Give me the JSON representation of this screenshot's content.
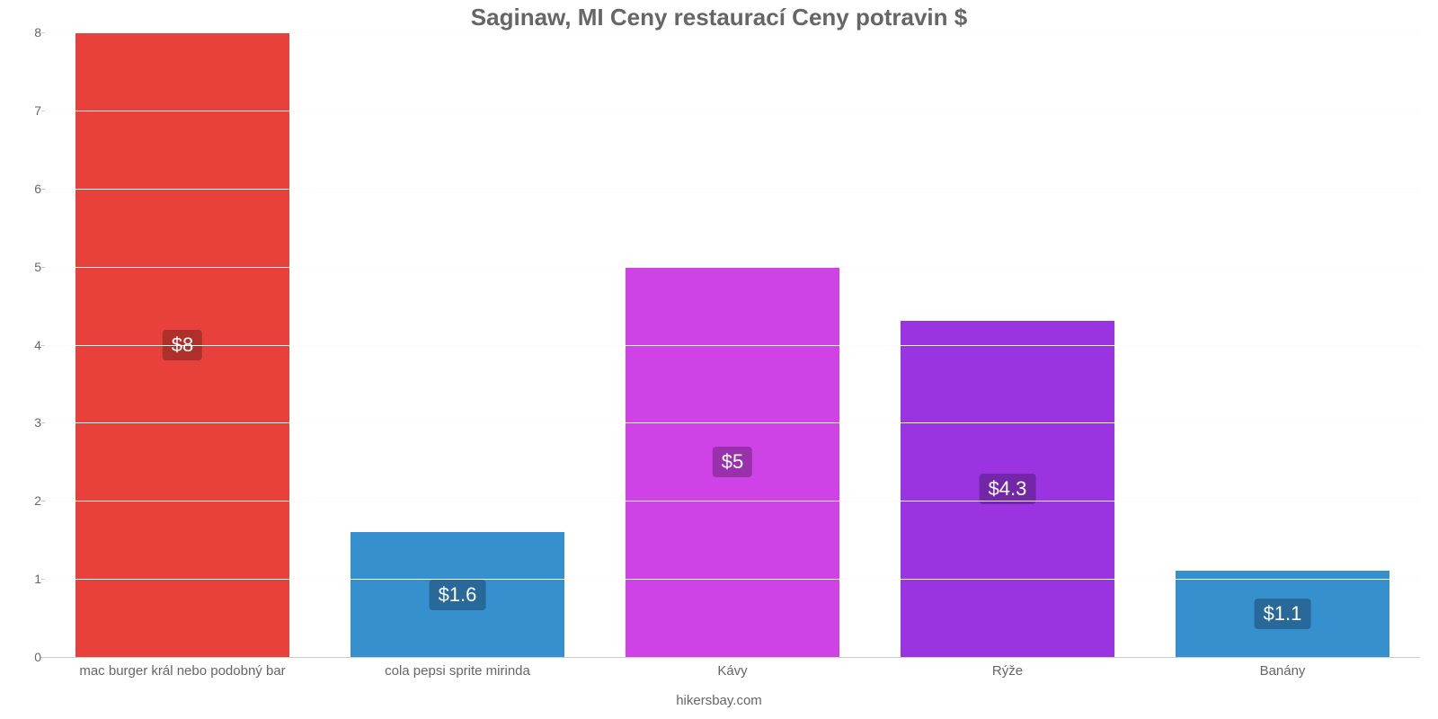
{
  "chart": {
    "type": "bar",
    "title": "Saginaw, MI Ceny restaurací Ceny potravin $",
    "title_fontsize": 26,
    "title_color": "#666666",
    "credit": "hikersbay.com",
    "credit_color": "#666666",
    "background_color": "#ffffff",
    "grid_color": "#fafafa",
    "axis_color": "#cccccc",
    "tick_label_color": "#666666",
    "tick_fontsize": 14,
    "x_label_fontsize": 15,
    "value_label_fontsize": 22,
    "ylim": [
      0,
      8
    ],
    "ytick_step": 1,
    "bar_width_pct": 15.5,
    "categories": [
      "mac burger král nebo podobný bar",
      "cola pepsi sprite mirinda",
      "Kávy",
      "Rýže",
      "Banány"
    ],
    "values": [
      8,
      1.6,
      5,
      4.3,
      1.1
    ],
    "value_labels": [
      "$8",
      "$1.6",
      "$5",
      "$4.3",
      "$1.1"
    ],
    "bar_colors": [
      "#e8403a",
      "#3690ce",
      "#cf42e6",
      "#9a34e0",
      "#3690ce"
    ],
    "label_bg_colors": [
      "#ad302b",
      "#28699a",
      "#9a31ac",
      "#7327a8",
      "#28699a"
    ]
  }
}
